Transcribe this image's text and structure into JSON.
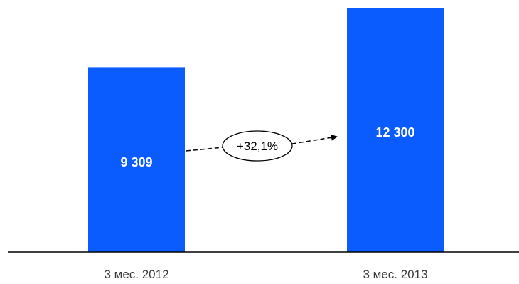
{
  "chart_data": {
    "type": "bar",
    "categories": [
      "3 мес. 2012",
      "3 мес. 2013"
    ],
    "values": [
      9309,
      12300
    ],
    "value_labels": [
      "9 309",
      "12 300"
    ],
    "ylim": [
      0,
      12300
    ],
    "grid": false,
    "legend": "none",
    "annotation": {
      "text": "+32,1%",
      "from_category": "3 мес. 2012",
      "to_category": "3 мес. 2013"
    },
    "colors": {
      "bar": "#0a5cff",
      "value_text": "#ffffff",
      "axis": "#000000",
      "category_text": "#3a3a3a"
    }
  }
}
